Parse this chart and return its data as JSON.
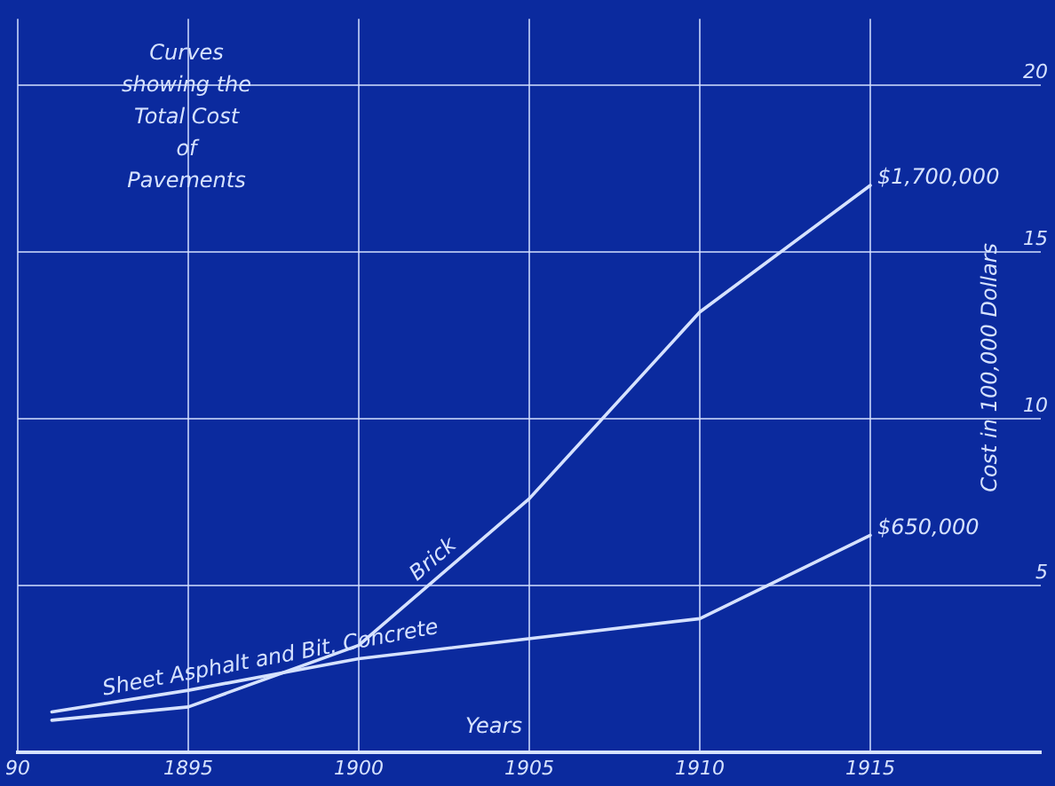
{
  "chart_data": {
    "type": "line",
    "title": "Curves\nshowing the\nTotal Cost\nof\nPavements",
    "xlabel": "Years",
    "ylabel": "Cost in 100,000 Dollars",
    "series": [
      {
        "name": "Brick",
        "color": "#d6e2ff",
        "x": [
          1891,
          1895,
          1900,
          1905,
          1910,
          1915
        ],
        "values": [
          0.95,
          1.35,
          3.2,
          7.6,
          13.2,
          17
        ]
      },
      {
        "name": "Sheet Asphalt and Bit. Concrete",
        "color": "#d6e2ff",
        "x": [
          1891,
          1895,
          1900,
          1910,
          1915
        ],
        "values": [
          1.2,
          1.85,
          2.8,
          4.0,
          6.5
        ]
      }
    ],
    "xlim": [
      1890,
      1920
    ],
    "xticks": [
      {
        "value": 1890,
        "label": "90"
      },
      1895,
      1900,
      1905,
      1910,
      1915
    ],
    "ylim": [
      0,
      22
    ],
    "yticks": [
      5,
      10,
      15,
      20
    ],
    "annotations": [
      {
        "text": "$1,700,000",
        "x": 1915,
        "y": 17
      },
      {
        "text": "$650,000",
        "x": 1915,
        "y": 6.5
      }
    ],
    "grid": true,
    "legend": false,
    "marker": "none",
    "line_style": "solid"
  }
}
